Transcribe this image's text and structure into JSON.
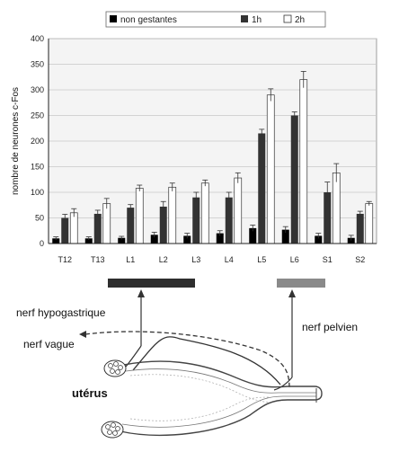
{
  "chart_data": {
    "type": "bar",
    "title": "",
    "xlabel": "",
    "ylabel": "nombre de neurones c-Fos",
    "ylim": [
      0,
      400
    ],
    "yticks": [
      "0",
      "50",
      "100",
      "150",
      "200",
      "250",
      "300",
      "350",
      "400"
    ],
    "grid": true,
    "legend_position": "top",
    "categories": [
      "T12",
      "T13",
      "L1",
      "L2",
      "L3",
      "L4",
      "L5",
      "L6",
      "S1",
      "S2"
    ],
    "series": [
      {
        "name": "non gestantes",
        "color": "#000000",
        "values": [
          10,
          10,
          11,
          17,
          15,
          20,
          30,
          27,
          15,
          11
        ],
        "errors": [
          3,
          3,
          3,
          5,
          5,
          5,
          6,
          6,
          5,
          5
        ]
      },
      {
        "name": "1h",
        "color": "#333333",
        "values": [
          50,
          58,
          70,
          72,
          90,
          90,
          215,
          250,
          100,
          58
        ],
        "errors": [
          7,
          7,
          6,
          10,
          10,
          10,
          8,
          7,
          20,
          5
        ]
      },
      {
        "name": "2h",
        "color": "#ffffff",
        "values": [
          60,
          78,
          108,
          110,
          118,
          128,
          290,
          320,
          138,
          78
        ],
        "errors": [
          8,
          10,
          6,
          8,
          6,
          10,
          12,
          16,
          18,
          4
        ]
      }
    ]
  },
  "diagram": {
    "label_hypogastric": "nerf hypogastrique",
    "label_vagus": "nerf vague",
    "label_pelvic": "nerf pelvien",
    "label_uterus": "utérus",
    "bar_dark_color": "#2e2e2e",
    "bar_light_color": "#8a8a8a"
  }
}
